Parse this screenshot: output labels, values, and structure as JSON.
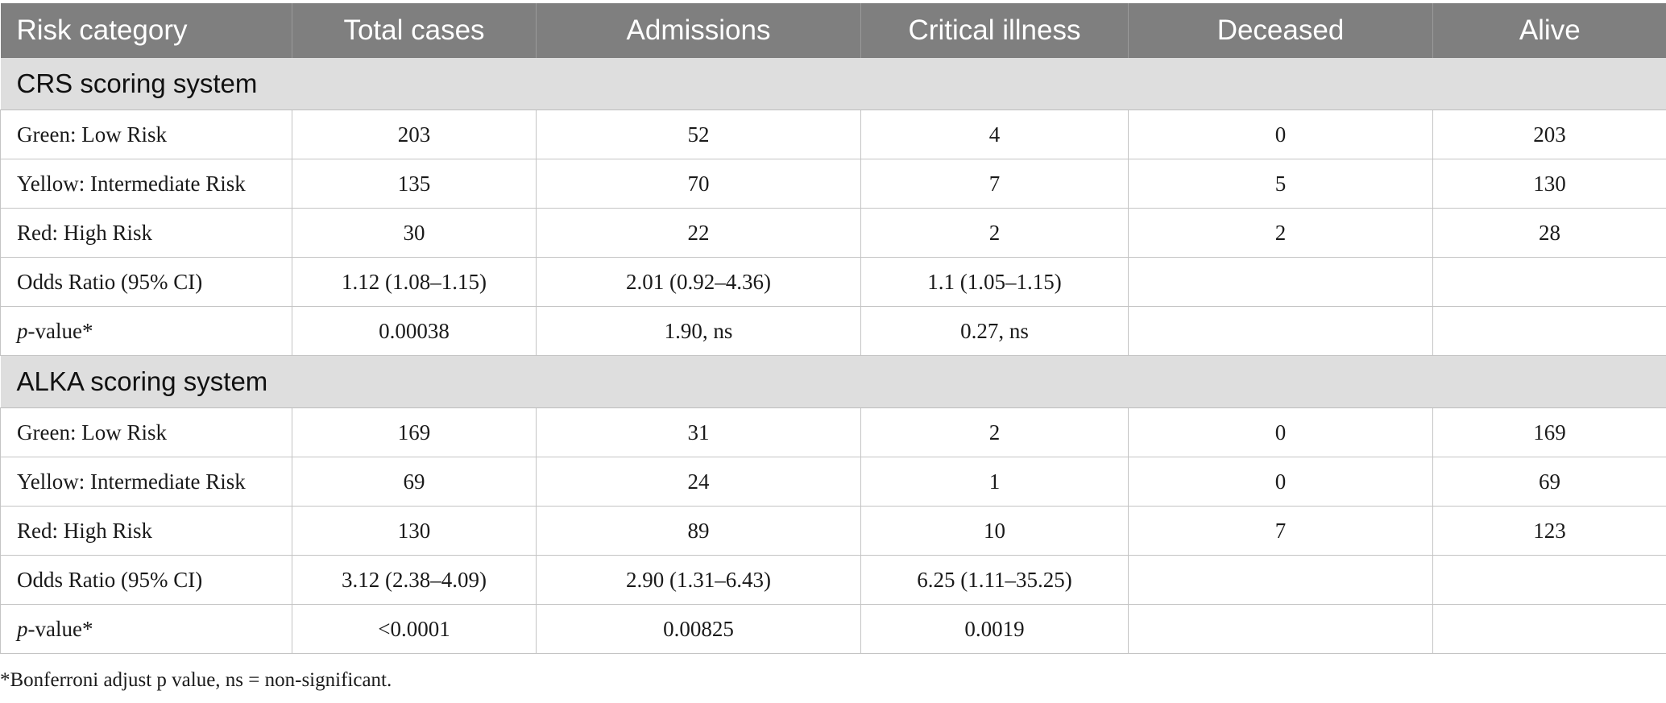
{
  "header": {
    "risk_category": "Risk category",
    "total_cases": "Total cases",
    "admissions": "Admissions",
    "critical_illness": "Critical illness",
    "deceased": "Deceased",
    "alive": "Alive"
  },
  "sections": [
    {
      "title": "CRS scoring system",
      "rows": [
        {
          "label": "Green: Low Risk",
          "total_cases": "203",
          "admissions": "52",
          "critical_illness": "4",
          "deceased": "0",
          "alive": "203"
        },
        {
          "label": "Yellow: Intermediate Risk",
          "total_cases": "135",
          "admissions": "70",
          "critical_illness": "7",
          "deceased": "5",
          "alive": "130"
        },
        {
          "label": "Red: High Risk",
          "total_cases": "30",
          "admissions": "22",
          "critical_illness": "2",
          "deceased": "2",
          "alive": "28"
        },
        {
          "label": "Odds Ratio (95% CI)",
          "total_cases": "1.12 (1.08–1.15)",
          "admissions": "2.01 (0.92–4.36)",
          "critical_illness": "1.1 (1.05–1.15)",
          "deceased": "",
          "alive": ""
        },
        {
          "label_italic": "p",
          "label_rest": "-value*",
          "total_cases": "0.00038",
          "admissions": "1.90, ns",
          "critical_illness": "0.27, ns",
          "deceased": "",
          "alive": ""
        }
      ]
    },
    {
      "title": "ALKA scoring system",
      "rows": [
        {
          "label": "Green: Low Risk",
          "total_cases": "169",
          "admissions": "31",
          "critical_illness": "2",
          "deceased": "0",
          "alive": "169"
        },
        {
          "label": "Yellow: Intermediate Risk",
          "total_cases": "69",
          "admissions": "24",
          "critical_illness": "1",
          "deceased": "0",
          "alive": "69"
        },
        {
          "label": "Red: High Risk",
          "total_cases": "130",
          "admissions": "89",
          "critical_illness": "10",
          "deceased": "7",
          "alive": "123"
        },
        {
          "label": "Odds Ratio (95% CI)",
          "total_cases": "3.12 (2.38–4.09)",
          "admissions": "2.90 (1.31–6.43)",
          "critical_illness": "6.25 (1.11–35.25)",
          "deceased": "",
          "alive": ""
        },
        {
          "label_italic": "p",
          "label_rest": "-value*",
          "total_cases": "<0.0001",
          "admissions": "0.00825",
          "critical_illness": "0.0019",
          "deceased": "",
          "alive": ""
        }
      ]
    }
  ],
  "footnote": "*Bonferroni adjust p value, ns = non-significant."
}
